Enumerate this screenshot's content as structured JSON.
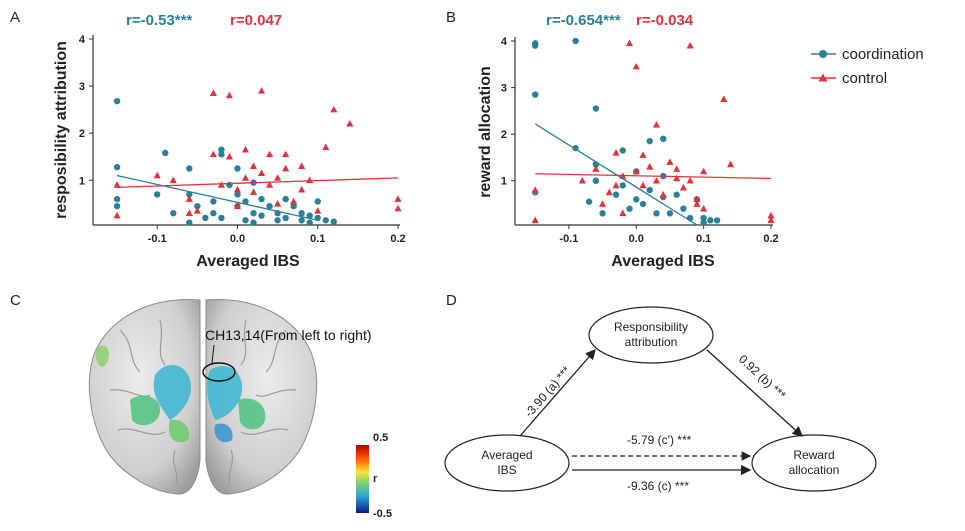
{
  "colors": {
    "coordination": "#2a7f9a",
    "control": "#e0343c"
  },
  "legend": {
    "coordination": "coordination",
    "control": "control"
  },
  "chart_data": [
    {
      "panel": "A",
      "type": "scatter",
      "xlabel": "Averaged IBS",
      "ylabel": "resposibility attribution",
      "xticks": [
        "-0.1",
        "0.0",
        "0.1",
        "0.2"
      ],
      "yticks": [
        "1",
        "2",
        "3",
        "4"
      ],
      "xlim": [
        -0.18,
        0.2
      ],
      "ylim": [
        0.05,
        4
      ],
      "r_coordination": "r=-0.53***",
      "r_control": "r=0.047",
      "fit_coordination": {
        "x": [
          -0.15,
          0.1
        ],
        "y": [
          1.1,
          0.15
        ]
      },
      "fit_control": {
        "x": [
          -0.15,
          0.2
        ],
        "y": [
          0.85,
          1.05
        ]
      },
      "series": [
        {
          "name": "coordination",
          "x": [
            -0.15,
            -0.15,
            -0.15,
            -0.15,
            -0.1,
            -0.09,
            -0.08,
            -0.06,
            -0.06,
            -0.06,
            -0.05,
            -0.04,
            -0.03,
            -0.03,
            -0.02,
            -0.02,
            -0.01,
            0.0,
            0.0,
            0.01,
            0.01,
            0.02,
            0.02,
            0.03,
            0.03,
            0.04,
            0.05,
            0.05,
            0.06,
            0.06,
            0.07,
            0.08,
            0.08,
            0.09,
            0.09,
            0.1,
            0.1,
            0.11,
            0.12,
            -0.02,
            0.0,
            0.02
          ],
          "y": [
            2.68,
            1.28,
            0.6,
            0.45,
            0.7,
            1.58,
            0.3,
            1.25,
            0.7,
            0.1,
            0.45,
            0.2,
            0.55,
            0.3,
            1.65,
            1.55,
            0.9,
            0.7,
            0.45,
            0.55,
            0.15,
            0.95,
            0.3,
            0.6,
            0.25,
            0.45,
            0.3,
            0.15,
            0.6,
            0.2,
            0.45,
            0.3,
            0.15,
            0.25,
            0.1,
            0.55,
            0.2,
            0.15,
            0.12,
            0.2,
            1.25,
            0.1
          ]
        },
        {
          "name": "control",
          "x": [
            -0.15,
            -0.15,
            -0.1,
            -0.08,
            -0.06,
            -0.06,
            -0.05,
            -0.03,
            -0.03,
            -0.02,
            -0.01,
            0.0,
            0.0,
            0.01,
            0.01,
            0.02,
            0.02,
            0.03,
            0.04,
            0.04,
            0.05,
            0.05,
            0.06,
            0.06,
            0.07,
            0.08,
            0.08,
            0.09,
            0.1,
            0.11,
            0.12,
            0.14,
            0.2,
            0.2,
            -0.01,
            0.03
          ],
          "y": [
            0.25,
            0.9,
            1.1,
            1.0,
            0.6,
            0.3,
            0.35,
            2.85,
            1.55,
            0.9,
            1.5,
            0.8,
            0.45,
            1.65,
            1.05,
            1.3,
            0.75,
            2.9,
            1.55,
            0.9,
            1.05,
            0.5,
            1.55,
            1.25,
            0.55,
            1.3,
            0.8,
            1.0,
            0.35,
            1.7,
            2.5,
            2.2,
            0.6,
            0.4,
            2.8,
            1.15
          ]
        }
      ]
    },
    {
      "panel": "B",
      "type": "scatter",
      "xlabel": "Averaged IBS",
      "ylabel": "reward allocation",
      "xticks": [
        "-0.1",
        "0.0",
        "0.1",
        "0.2"
      ],
      "yticks": [
        "1",
        "2",
        "3",
        "4"
      ],
      "xlim": [
        -0.18,
        0.2
      ],
      "ylim": [
        0.05,
        4
      ],
      "r_coordination": "r=-0.654***",
      "r_control": "r=-0.034",
      "fit_coordination": {
        "x": [
          -0.15,
          0.09
        ],
        "y": [
          2.22,
          0.05
        ]
      },
      "fit_control": {
        "x": [
          -0.15,
          0.2
        ],
        "y": [
          1.15,
          1.05
        ]
      },
      "series": [
        {
          "name": "coordination",
          "x": [
            -0.15,
            -0.15,
            -0.15,
            -0.15,
            -0.09,
            -0.09,
            -0.07,
            -0.06,
            -0.06,
            -0.06,
            -0.05,
            -0.03,
            -0.02,
            -0.02,
            -0.01,
            0.0,
            0.0,
            0.01,
            0.02,
            0.02,
            0.03,
            0.04,
            0.04,
            0.05,
            0.06,
            0.07,
            0.08,
            0.09,
            0.1,
            0.1,
            0.11,
            0.12,
            0.04
          ],
          "y": [
            3.95,
            3.9,
            2.85,
            0.75,
            4.0,
            1.7,
            0.55,
            2.55,
            1.35,
            1.0,
            0.3,
            0.7,
            1.65,
            0.9,
            0.4,
            1.2,
            0.6,
            0.5,
            1.85,
            0.8,
            0.3,
            1.1,
            0.65,
            0.3,
            0.7,
            0.4,
            0.2,
            0.6,
            0.2,
            0.1,
            0.15,
            0.15,
            1.9
          ]
        },
        {
          "name": "control",
          "x": [
            -0.15,
            -0.15,
            -0.08,
            -0.06,
            -0.05,
            -0.04,
            -0.03,
            -0.02,
            -0.02,
            -0.01,
            0.0,
            0.0,
            0.01,
            0.01,
            0.02,
            0.03,
            0.03,
            0.04,
            0.05,
            0.06,
            0.07,
            0.08,
            0.08,
            0.09,
            0.1,
            0.1,
            0.13,
            0.14,
            0.2,
            0.2,
            -0.03,
            0.09,
            0.06
          ],
          "y": [
            0.8,
            0.15,
            1.0,
            1.25,
            0.5,
            0.75,
            1.6,
            0.3,
            1.1,
            3.95,
            3.45,
            1.2,
            1.55,
            0.9,
            1.3,
            2.2,
            1.0,
            0.7,
            1.4,
            1.25,
            0.85,
            3.9,
            1.0,
            0.6,
            1.2,
            0.4,
            2.75,
            1.35,
            0.25,
            0.15,
            0.9,
            0.5,
            1.05
          ]
        }
      ]
    }
  ],
  "panel_c": {
    "letter": "C",
    "callout": "CH13,14(From left to right)",
    "colorbar_max": "0.5",
    "colorbar_mid": "r",
    "colorbar_min": "-0.5"
  },
  "panel_d": {
    "letter": "D",
    "node_x_line1": "Averaged",
    "node_x_line2": "IBS",
    "node_m_line1": "Responsibility",
    "node_m_line2": "attribution",
    "node_y_line1": "Reward",
    "node_y_line2": "allocation",
    "path_a": "-3.90 (a) ***",
    "path_b": "0.92 (b) ***",
    "path_c_prime": "-5.79 (c') ***",
    "path_c": "-9.36 (c) ***"
  }
}
